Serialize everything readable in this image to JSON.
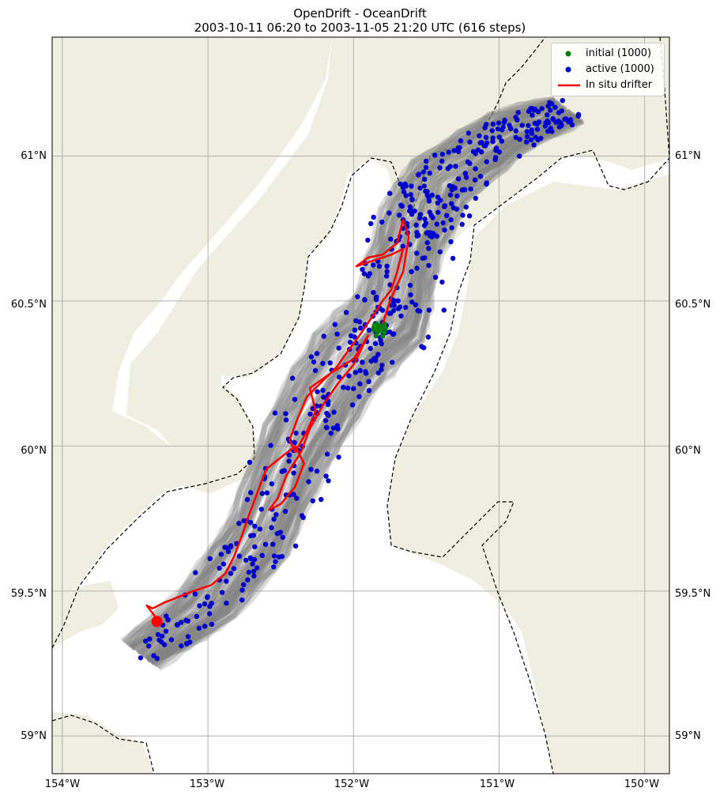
{
  "title": {
    "line1": "OpenDrift - OceanDrift",
    "line2": "2003-10-11 06:20 to 2003-11-05 21:20 UTC (616 steps)"
  },
  "map": {
    "lon_range": [
      -154.07,
      -149.83
    ],
    "lat_range": [
      58.87,
      61.41
    ],
    "land_color": "#efefe1",
    "sea_color": "#ffffff",
    "grid_color": "#b0b0b0",
    "boundary_style": "dashed black"
  },
  "axes": {
    "lon_ticks": [
      {
        "value": -154,
        "label": "154°W"
      },
      {
        "value": -153,
        "label": "153°W"
      },
      {
        "value": -152,
        "label": "152°W"
      },
      {
        "value": -151,
        "label": "151°W"
      },
      {
        "value": -150,
        "label": "150°W"
      }
    ],
    "lat_ticks": [
      {
        "value": 61.0,
        "label": "61°N"
      },
      {
        "value": 60.5,
        "label": "60.5°N"
      },
      {
        "value": 60.0,
        "label": "60°N"
      },
      {
        "value": 59.5,
        "label": "59.5°N"
      },
      {
        "value": 59.0,
        "label": "59°N"
      }
    ]
  },
  "legend": {
    "placement": "top-right",
    "items": [
      {
        "label": "initial (1000)",
        "color": "#008000",
        "kind": "dot"
      },
      {
        "label": "active (1000)",
        "color": "#0000cd",
        "kind": "dot"
      },
      {
        "label": "In situ drifter",
        "color": "#ff0000",
        "kind": "line"
      }
    ]
  },
  "colors": {
    "trajectories": "#808080",
    "active": "#0000cd",
    "initial": "#008000",
    "drifter": "#ff0000"
  },
  "initial_position": {
    "lon": -151.82,
    "lat": 60.4
  },
  "drifter_track": [
    [
      -151.8,
      60.42
    ],
    [
      -151.75,
      60.5
    ],
    [
      -151.66,
      60.6
    ],
    [
      -151.62,
      60.72
    ],
    [
      -151.66,
      60.78
    ],
    [
      -151.7,
      60.7
    ],
    [
      -151.8,
      60.66
    ],
    [
      -151.9,
      60.65
    ],
    [
      -151.98,
      60.62
    ],
    [
      -151.86,
      60.64
    ],
    [
      -151.74,
      60.66
    ],
    [
      -151.66,
      60.68
    ],
    [
      -151.7,
      60.6
    ],
    [
      -151.74,
      60.54
    ],
    [
      -151.8,
      60.5
    ],
    [
      -151.88,
      60.44
    ],
    [
      -151.96,
      60.38
    ],
    [
      -152.05,
      60.32
    ],
    [
      -152.12,
      60.27
    ],
    [
      -152.22,
      60.22
    ],
    [
      -152.32,
      60.17
    ],
    [
      -152.38,
      60.1
    ],
    [
      -152.44,
      60.02
    ],
    [
      -152.4,
      59.98
    ],
    [
      -152.32,
      60.05
    ],
    [
      -152.26,
      60.12
    ],
    [
      -152.3,
      60.2
    ],
    [
      -152.16,
      60.25
    ],
    [
      -152.0,
      60.3
    ],
    [
      -151.9,
      60.38
    ],
    [
      -152.0,
      60.28
    ],
    [
      -152.1,
      60.22
    ],
    [
      -152.2,
      60.15
    ],
    [
      -152.3,
      60.06
    ],
    [
      -152.36,
      59.98
    ],
    [
      -152.46,
      59.9
    ],
    [
      -152.52,
      59.82
    ],
    [
      -152.58,
      59.78
    ],
    [
      -152.5,
      59.8
    ],
    [
      -152.4,
      59.86
    ],
    [
      -152.34,
      59.94
    ],
    [
      -152.4,
      60.0
    ],
    [
      -152.5,
      59.96
    ],
    [
      -152.6,
      59.92
    ],
    [
      -152.66,
      59.84
    ],
    [
      -152.72,
      59.76
    ],
    [
      -152.76,
      59.7
    ],
    [
      -152.82,
      59.62
    ],
    [
      -152.88,
      59.56
    ],
    [
      -152.98,
      59.52
    ],
    [
      -153.1,
      59.5
    ],
    [
      -153.2,
      59.48
    ],
    [
      -153.3,
      59.46
    ],
    [
      -153.38,
      59.44
    ],
    [
      -153.42,
      59.45
    ],
    [
      -153.36,
      59.41
    ],
    [
      -153.35,
      59.39
    ]
  ],
  "drifter_end": {
    "lon": -153.35,
    "lat": 59.395
  }
}
